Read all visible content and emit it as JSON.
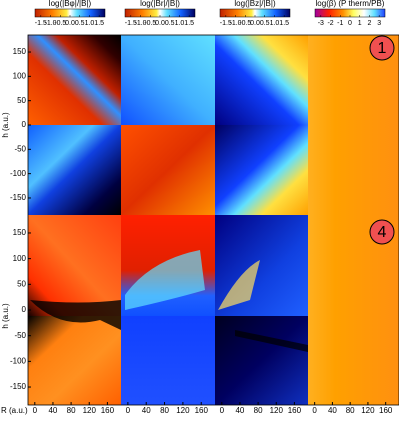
{
  "figure": {
    "colorbars": [
      {
        "label": "log(|Bφ|/|B|)",
        "ticks": [
          -1.5,
          {
            "value": -1,
            "label": "-1.0"
          },
          -0.5,
          {
            "value": 0,
            "label": "0.0"
          },
          0.5,
          {
            "value": 1,
            "label": "1.0"
          },
          1.5
        ],
        "lim": [
          -1.8,
          1.8
        ]
      },
      {
        "label": "log(|Br|/|B|)",
        "ticks": [
          -1.5,
          {
            "value": -1,
            "label": "-1.0"
          },
          -0.5,
          {
            "value": 0,
            "label": "0.0"
          },
          0.5,
          {
            "value": 1,
            "label": "1.0"
          },
          1.5
        ],
        "lim": [
          -1.8,
          1.8
        ]
      },
      {
        "label": "log(|Bz|/|B|)",
        "ticks": [
          -1.5,
          {
            "value": -1,
            "label": "-1.0"
          },
          -0.5,
          {
            "value": 0,
            "label": "0.0"
          },
          0.5,
          {
            "value": 1,
            "label": "1.0"
          },
          1.5
        ],
        "lim": [
          -1.8,
          1.8
        ]
      },
      {
        "label": "log(β) (P therm/PB)",
        "ticks": [
          -3,
          -2,
          -1,
          0,
          1,
          2,
          3
        ],
        "lim": [
          -3.6,
          3.6
        ]
      }
    ],
    "x_label": "R (a.u.)",
    "y_label": "h (a.u.)",
    "xlim": [
      -15,
      190
    ],
    "xticks": [
      0,
      40,
      80,
      120,
      160
    ],
    "ylim": [
      -185,
      185
    ],
    "yticks": [
      150,
      100,
      50,
      0,
      -50,
      -100,
      -150
    ],
    "panel_labels": [
      "1",
      "4"
    ]
  }
}
